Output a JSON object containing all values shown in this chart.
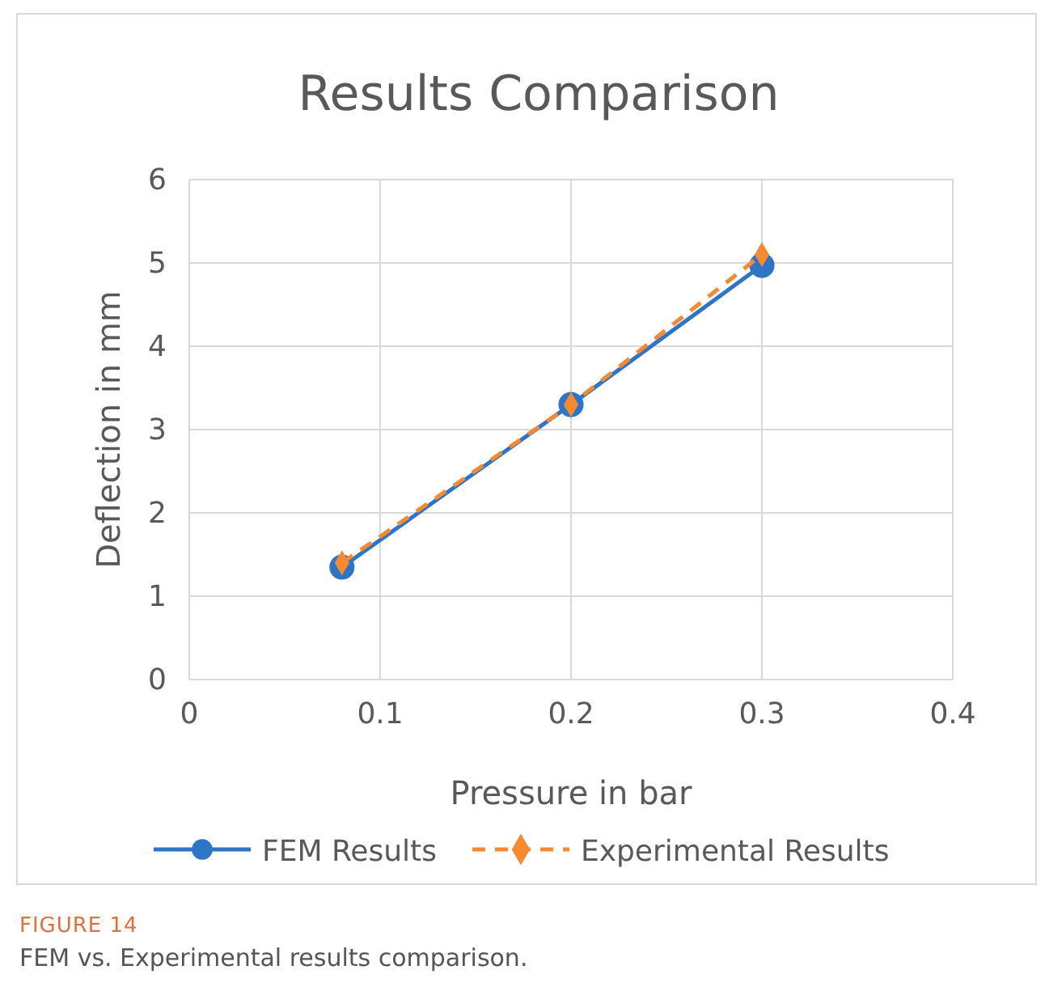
{
  "chart_data": {
    "type": "line",
    "title": "Results Comparison",
    "xlabel": "Pressure in bar",
    "ylabel": "Deflection in mm",
    "xlim": [
      0,
      0.4
    ],
    "xticks": [
      0,
      0.1,
      0.2,
      0.3,
      0.4
    ],
    "ylim": [
      0,
      6
    ],
    "yticks": [
      0,
      1,
      2,
      3,
      4,
      5,
      6
    ],
    "grid": true,
    "legend": "bottom",
    "series": [
      {
        "name": "FEM Results",
        "color": "#2e75c6",
        "x": [
          0.08,
          0.2,
          0.3
        ],
        "values": [
          1.35,
          3.3,
          4.97
        ],
        "marker": "circle",
        "line_style": "solid"
      },
      {
        "name": "Experimental Results",
        "color": "#f58a33",
        "x": [
          0.08,
          0.2,
          0.3
        ],
        "values": [
          1.4,
          3.3,
          5.1
        ],
        "marker": "diamond",
        "line_style": "dashed"
      }
    ],
    "annotations": [
      "FIGURE 14",
      "FEM vs. Experimental results comparison."
    ]
  }
}
